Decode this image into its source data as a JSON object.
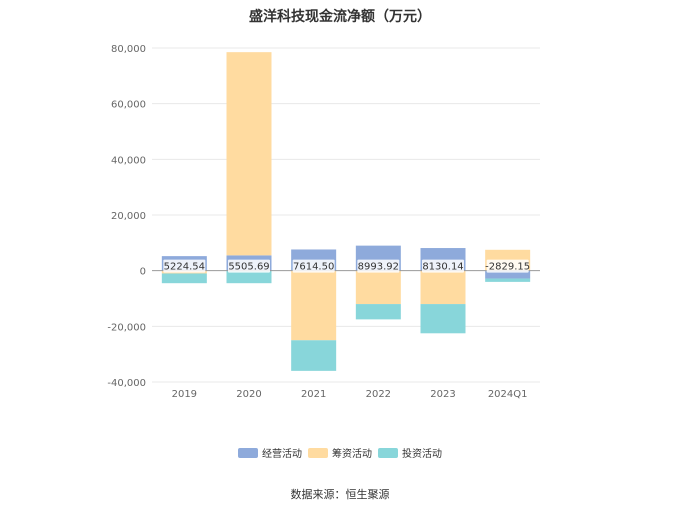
{
  "chart_data": {
    "type": "bar",
    "stacked": true,
    "title": "盛洋科技现金流净额（万元）",
    "categories": [
      "2019",
      "2020",
      "2021",
      "2022",
      "2023",
      "2024Q1"
    ],
    "series": [
      {
        "name": "经营活动",
        "color": "#8eaadb",
        "values": [
          5224.54,
          5505.69,
          7614.5,
          8993.92,
          8130.14,
          -2829.15
        ]
      },
      {
        "name": "筹资活动",
        "color": "#ffdba0",
        "values": [
          -1000,
          73000,
          -25000,
          -12000,
          -12000,
          7500
        ]
      },
      {
        "name": "投资活动",
        "color": "#88d6da",
        "values": [
          -3500,
          -4500,
          -11000,
          -5500,
          -10500,
          -1200
        ]
      }
    ],
    "labels": [
      "5224.54",
      "5505.69",
      "7614.50",
      "8993.92",
      "8130.14",
      "-2829.15"
    ],
    "ylim": [
      -40000,
      80000
    ],
    "yticks": [
      "80,000",
      "60,000",
      "40,000",
      "20,000",
      "0",
      "-20,000",
      "-40,000"
    ],
    "ytick_values": [
      80000,
      60000,
      40000,
      20000,
      0,
      -20000,
      -40000
    ],
    "grid": true,
    "legend_position": "bottom"
  },
  "source": "数据来源：恒生聚源"
}
